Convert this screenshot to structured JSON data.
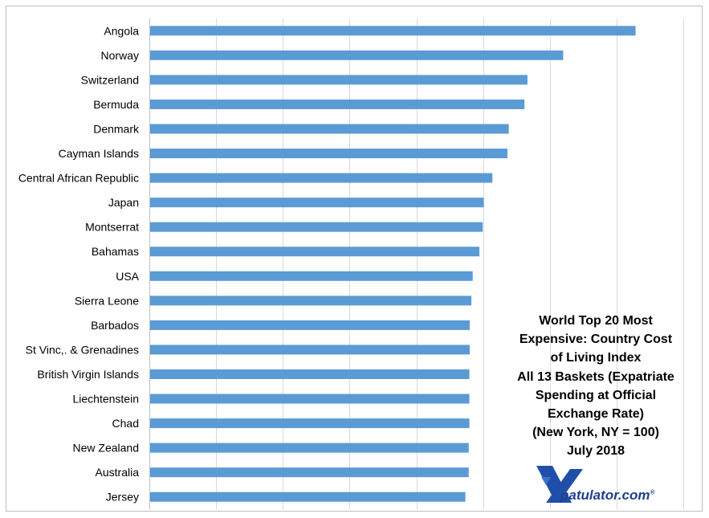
{
  "chart_data": {
    "type": "bar",
    "orientation": "horizontal",
    "title_lines": [
      "World Top 20 Most",
      "Expensive: Country Cost",
      "of Living Index",
      "All 13 Baskets (Expatriate",
      "Spending at Official",
      "Exchange Rate)",
      "(New York, NY = 100)",
      "July 2018"
    ],
    "categories": [
      "Angola",
      "Norway",
      "Switzerland",
      "Bermuda",
      "Denmark",
      "Cayman Islands",
      "Central African Republic",
      "Japan",
      "Montserrat",
      "Bahamas",
      "USA",
      "Sierra Leone",
      "Barbados",
      "St Vinc,. & Grenadines",
      "British Virgin Islands",
      "Liechtenstein",
      "Chad",
      "New Zealand",
      "Australia",
      "Jersey"
    ],
    "values": [
      145.7,
      124.0,
      113.3,
      112.4,
      107.7,
      107.3,
      102.8,
      100.2,
      99.9,
      98.9,
      96.9,
      96.5,
      96.0,
      96.0,
      95.9,
      95.9,
      95.9,
      95.7,
      95.7,
      94.7
    ],
    "xlim": [
      0,
      160
    ],
    "grid": true,
    "bar_color": "#5b9bd5",
    "gridline_color": "#d9d9d9"
  },
  "logo": {
    "brand_text": "patulator.com",
    "registered_mark": "®",
    "mark_color": "#1f4fa8",
    "text_color": "#1f3f8f"
  }
}
